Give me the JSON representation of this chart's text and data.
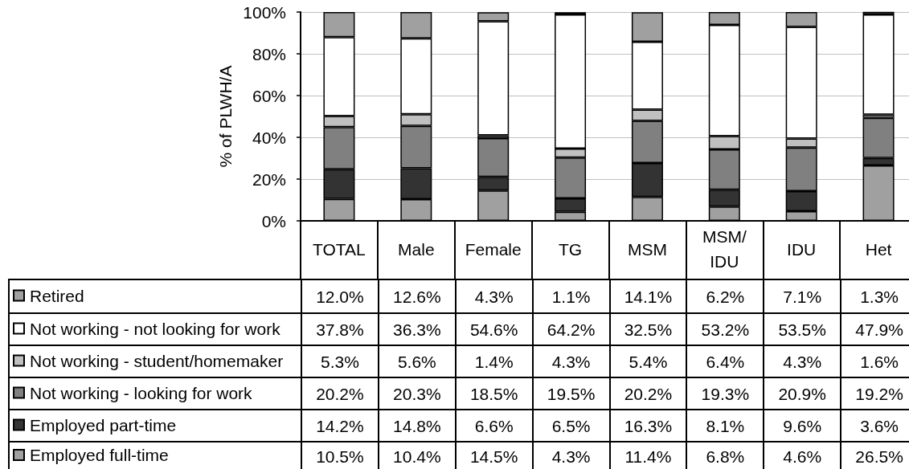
{
  "chart_data": {
    "type": "bar",
    "stacked": true,
    "ylabel": "% of PLWH/A",
    "categories": [
      "TOTAL",
      "Male",
      "Female",
      "TG",
      "MSM",
      "MSM/\nIDU",
      "IDU",
      "Het"
    ],
    "ylim": [
      0,
      100
    ],
    "yticks": [
      {
        "value": 0,
        "label": "0%"
      },
      {
        "value": 20,
        "label": "20%"
      },
      {
        "value": 40,
        "label": "40%"
      },
      {
        "value": 60,
        "label": "60%"
      },
      {
        "value": 80,
        "label": "80%"
      },
      {
        "value": 100,
        "label": "100%"
      }
    ],
    "grid": "y",
    "legend": "bottom left",
    "series": [
      {
        "name": "Employed full-time",
        "color": "#a0a0a0",
        "values": [
          10.5,
          10.4,
          14.5,
          4.3,
          11.4,
          6.8,
          4.6,
          26.5
        ],
        "value_labels": [
          "10.5%",
          "10.4%",
          "14.5%",
          "4.3%",
          "11.4%",
          "6.8%",
          "4.6%",
          "26.5%"
        ]
      },
      {
        "name": "Employed part-time",
        "color": "#333333",
        "values": [
          14.2,
          14.8,
          6.6,
          6.5,
          16.3,
          8.1,
          9.6,
          3.6
        ],
        "value_labels": [
          "14.2%",
          "14.8%",
          "6.6%",
          "6.5%",
          "16.3%",
          "8.1%",
          "9.6%",
          "3.6%"
        ]
      },
      {
        "name": "Not working - looking for work",
        "color": "#808080",
        "values": [
          20.2,
          20.3,
          18.5,
          19.5,
          20.2,
          19.3,
          20.9,
          19.2
        ],
        "value_labels": [
          "20.2%",
          "20.3%",
          "18.5%",
          "19.5%",
          "20.2%",
          "19.3%",
          "20.9%",
          "19.2%"
        ]
      },
      {
        "name": "Not working - student/homemaker",
        "color": "#c0c0c0",
        "values": [
          5.3,
          5.6,
          1.4,
          4.3,
          5.4,
          6.4,
          4.3,
          1.6
        ],
        "value_labels": [
          "5.3%",
          "5.6%",
          "1.4%",
          "4.3%",
          "5.4%",
          "6.4%",
          "4.3%",
          "1.6%"
        ]
      },
      {
        "name": "Not working - not looking for work",
        "color": "#ffffff",
        "values": [
          37.8,
          36.3,
          54.6,
          64.2,
          32.5,
          53.2,
          53.5,
          47.9
        ],
        "value_labels": [
          "37.8%",
          "36.3%",
          "54.6%",
          "64.2%",
          "32.5%",
          "53.2%",
          "53.5%",
          "47.9%"
        ]
      },
      {
        "name": "Retired",
        "color": "#a0a0a0",
        "values": [
          12.0,
          12.6,
          4.3,
          1.1,
          14.1,
          6.2,
          7.1,
          1.3
        ],
        "value_labels": [
          "12.0%",
          "12.6%",
          "4.3%",
          "1.1%",
          "14.1%",
          "6.2%",
          "7.1%",
          "1.3%"
        ]
      }
    ]
  }
}
